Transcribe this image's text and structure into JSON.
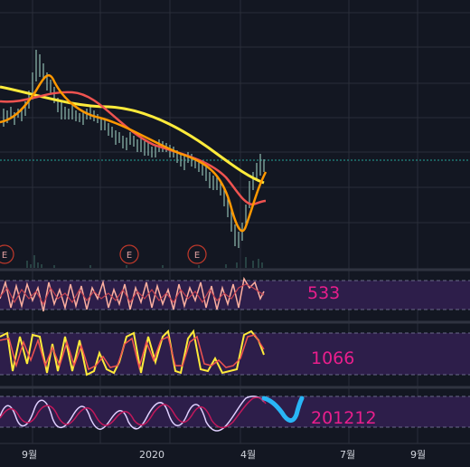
{
  "panels": {
    "indicator1_label": "533",
    "indicator2_label": "1066",
    "indicator3_label": "201212"
  },
  "x_axis": {
    "ticks": [
      "9월",
      "2020",
      "4월",
      "7월",
      "9월"
    ]
  },
  "earnings_markers": [
    "E",
    "E",
    "E"
  ],
  "colors": {
    "background": "#131722",
    "grid": "#2a2e39",
    "indicator_band": "#2d1e4a",
    "label": "#e91e8c",
    "price_dotted": "#26a69a",
    "ma_long": "#ffeb3b",
    "ma_mid": "#ef5350",
    "ma_short": "#ff9800",
    "prediction": "#29b6f6"
  }
}
